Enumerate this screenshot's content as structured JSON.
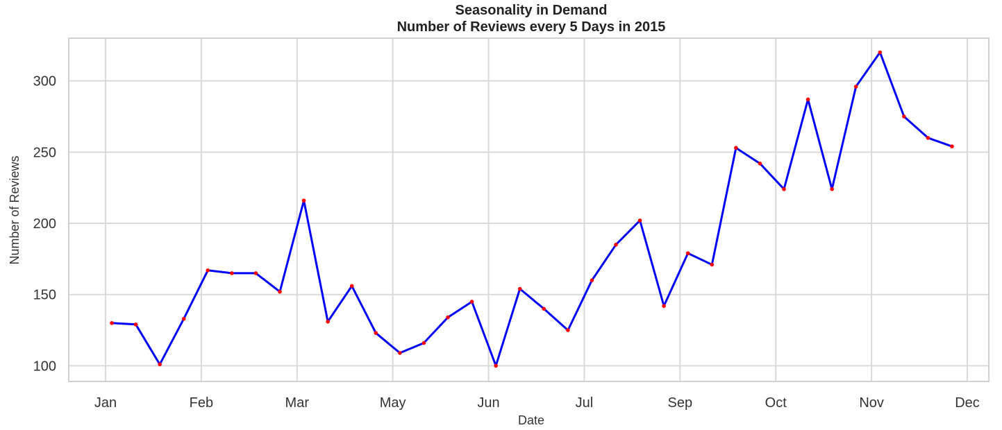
{
  "chart_data": {
    "type": "line",
    "title": "Seasonality in Demand",
    "subtitle": "Number of Reviews every 5 Days in 2015",
    "xlabel": "Date",
    "ylabel": "Number of Reviews",
    "x_ticks": [
      "Jan",
      "Feb",
      "Mar",
      "May",
      "Jun",
      "Jul",
      "Sep",
      "Oct",
      "Nov",
      "Dec"
    ],
    "y_ticks": [
      100,
      150,
      200,
      250,
      300
    ],
    "ylim": [
      89,
      330
    ],
    "grid": true,
    "line_color": "#0000ff",
    "marker_color": "#ff0000",
    "series": [
      {
        "values": [
          130,
          129,
          101,
          133,
          167,
          165,
          165,
          152,
          216,
          131,
          156,
          123,
          109,
          116,
          134,
          145,
          100,
          154,
          140,
          125,
          160,
          185,
          202,
          142,
          179,
          171,
          253,
          242,
          224,
          287,
          224,
          296,
          320,
          275,
          260,
          254
        ]
      }
    ]
  }
}
